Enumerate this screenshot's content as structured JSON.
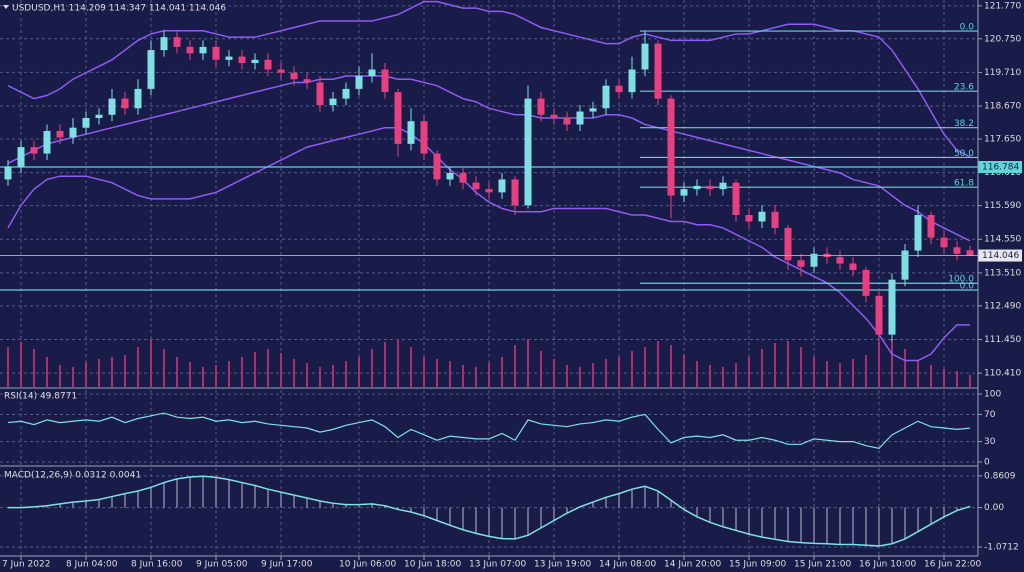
{
  "chart_data": [
    {
      "type": "candlestick",
      "title": "USDUSD,H1 114.209 114.347 114.041 114.046",
      "categories": [
        null,
        "7 Jun 2022",
        null,
        null,
        null,
        null,
        "8 Jun 04:00",
        null,
        null,
        null,
        null,
        "8 Jun 16:00",
        null,
        null,
        null,
        null,
        "9 Jun 05:00",
        null,
        null,
        null,
        null,
        "9 Jun 17:00",
        null,
        null,
        null,
        null,
        null,
        "10 Jun 06:00",
        null,
        null,
        null,
        null,
        "10 Jun 18:00",
        null,
        null,
        null,
        null,
        "13 Jun 07:00",
        null,
        null,
        null,
        null,
        "13 Jun 19:00",
        null,
        null,
        null,
        null,
        "14 Jun 08:00",
        null,
        null,
        null,
        null,
        "14 Jun 20:00",
        null,
        null,
        null,
        null,
        "15 Jun 09:00",
        null,
        null,
        null,
        null,
        "15 Jun 21:00",
        null,
        null,
        null,
        null,
        "16 Jun 10:00",
        null,
        null,
        null,
        null,
        "16 Jun 22:00",
        null,
        null
      ],
      "open": [
        116.4,
        116.8,
        117.4,
        117.2,
        117.9,
        117.7,
        118.0,
        118.3,
        118.4,
        118.9,
        118.6,
        119.2,
        120.4,
        120.8,
        120.5,
        120.3,
        120.5,
        120.1,
        120.2,
        120.0,
        120.1,
        119.8,
        119.7,
        119.5,
        119.4,
        118.7,
        118.9,
        119.2,
        119.6,
        119.8,
        119.1,
        117.5,
        118.2,
        117.2,
        116.4,
        116.6,
        116.3,
        116.1,
        116.0,
        116.4,
        115.6,
        118.9,
        118.4,
        118.3,
        118.1,
        118.5,
        118.6,
        119.3,
        119.1,
        119.8,
        120.6,
        118.9,
        115.9,
        116.1,
        116.2,
        116.1,
        116.3,
        115.3,
        115.1,
        115.4,
        114.9,
        113.9,
        113.7,
        114.1,
        114.0,
        113.8,
        113.6,
        112.8,
        111.6,
        113.3,
        114.2,
        115.3,
        114.6,
        114.3,
        114.209
      ],
      "high": [
        117.0,
        117.6,
        117.6,
        118.1,
        118.1,
        118.3,
        118.5,
        118.6,
        119.2,
        119.1,
        119.5,
        120.7,
        121.0,
        121.0,
        120.7,
        120.7,
        120.7,
        120.4,
        120.4,
        120.3,
        120.3,
        120.0,
        119.9,
        119.7,
        119.6,
        119.1,
        119.4,
        119.9,
        120.3,
        120.0,
        119.2,
        118.6,
        118.4,
        117.3,
        116.8,
        116.8,
        116.5,
        116.3,
        116.6,
        116.5,
        119.3,
        119.1,
        118.6,
        118.5,
        118.7,
        118.8,
        119.5,
        119.5,
        120.2,
        121.0,
        120.7,
        119.0,
        116.3,
        116.4,
        116.4,
        116.5,
        116.4,
        115.5,
        115.6,
        115.6,
        115.0,
        114.1,
        114.3,
        114.3,
        114.2,
        114.0,
        113.7,
        113.0,
        113.5,
        114.4,
        115.6,
        115.4,
        114.8,
        114.5,
        114.347
      ],
      "low": [
        116.2,
        116.6,
        117.0,
        117.0,
        117.5,
        117.5,
        117.8,
        118.1,
        118.2,
        118.4,
        118.4,
        119.0,
        120.2,
        120.3,
        120.1,
        120.1,
        119.9,
        119.9,
        119.8,
        119.8,
        119.6,
        119.5,
        119.3,
        119.2,
        118.5,
        118.5,
        118.7,
        119.0,
        119.4,
        118.9,
        117.1,
        117.3,
        117.0,
        116.2,
        116.2,
        116.1,
        115.9,
        115.8,
        115.8,
        115.3,
        115.5,
        118.2,
        118.1,
        117.9,
        117.9,
        118.3,
        118.4,
        118.9,
        118.9,
        119.6,
        118.7,
        115.2,
        115.7,
        115.9,
        115.9,
        115.9,
        115.1,
        114.9,
        114.9,
        114.7,
        113.6,
        113.4,
        113.5,
        113.8,
        113.6,
        113.4,
        112.6,
        111.3,
        111.4,
        113.1,
        114.0,
        114.4,
        114.1,
        113.9,
        114.041
      ],
      "close": [
        116.8,
        117.4,
        117.2,
        117.9,
        117.7,
        118.0,
        118.3,
        118.4,
        118.9,
        118.6,
        119.2,
        120.4,
        120.8,
        120.5,
        120.3,
        120.5,
        120.1,
        120.2,
        120.0,
        120.1,
        119.8,
        119.7,
        119.5,
        119.4,
        118.7,
        118.9,
        119.2,
        119.6,
        119.8,
        119.1,
        117.5,
        118.2,
        117.2,
        116.4,
        116.6,
        116.3,
        116.1,
        116.0,
        116.4,
        115.6,
        118.9,
        118.4,
        118.3,
        118.1,
        118.5,
        118.6,
        119.3,
        119.1,
        119.8,
        120.6,
        118.9,
        115.9,
        116.1,
        116.2,
        116.1,
        116.3,
        115.3,
        115.1,
        115.4,
        114.9,
        113.9,
        113.7,
        114.1,
        114.0,
        113.8,
        113.6,
        112.8,
        111.6,
        113.3,
        114.2,
        115.3,
        114.6,
        114.3,
        114.1,
        114.046
      ],
      "bb_upper": [
        119.3,
        119.1,
        118.9,
        119.0,
        119.2,
        119.5,
        119.7,
        119.9,
        120.1,
        120.4,
        120.7,
        120.9,
        121.0,
        121.0,
        121.0,
        121.0,
        120.9,
        120.8,
        120.8,
        120.8,
        120.9,
        121.0,
        121.1,
        121.2,
        121.3,
        121.3,
        121.3,
        121.3,
        121.3,
        121.4,
        121.5,
        121.7,
        121.9,
        121.9,
        121.8,
        121.7,
        121.7,
        121.6,
        121.6,
        121.5,
        121.3,
        121.1,
        121.0,
        120.9,
        120.8,
        120.7,
        120.6,
        120.6,
        120.8,
        120.9,
        120.8,
        120.7,
        120.7,
        120.7,
        120.7,
        120.8,
        120.9,
        120.9,
        121.0,
        121.1,
        121.2,
        121.2,
        121.2,
        121.1,
        121.0,
        121.0,
        120.9,
        120.8,
        120.4,
        119.8,
        119.2,
        118.5,
        117.8,
        117.3,
        117.1
      ],
      "bb_middle": [
        116.9,
        117.1,
        117.3,
        117.5,
        117.6,
        117.7,
        117.8,
        117.9,
        118.0,
        118.1,
        118.2,
        118.3,
        118.4,
        118.5,
        118.6,
        118.7,
        118.8,
        118.9,
        119.0,
        119.1,
        119.2,
        119.3,
        119.4,
        119.4,
        119.5,
        119.5,
        119.6,
        119.6,
        119.6,
        119.6,
        119.5,
        119.5,
        119.4,
        119.3,
        119.1,
        118.9,
        118.8,
        118.6,
        118.5,
        118.4,
        118.4,
        118.3,
        118.3,
        118.3,
        118.3,
        118.3,
        118.4,
        118.4,
        118.3,
        118.1,
        118.0,
        117.9,
        117.8,
        117.7,
        117.6,
        117.5,
        117.4,
        117.3,
        117.2,
        117.1,
        117.0,
        116.9,
        116.8,
        116.7,
        116.6,
        116.4,
        116.3,
        116.2,
        115.9,
        115.6,
        115.4,
        115.1,
        114.9,
        114.7,
        114.5
      ],
      "bb_lower": [
        114.9,
        115.6,
        116.1,
        116.4,
        116.5,
        116.5,
        116.5,
        116.4,
        116.3,
        116.1,
        115.9,
        115.8,
        115.8,
        115.8,
        115.8,
        115.9,
        116.0,
        116.2,
        116.4,
        116.6,
        116.8,
        117.0,
        117.2,
        117.4,
        117.5,
        117.6,
        117.7,
        117.8,
        117.9,
        118.0,
        118.0,
        117.8,
        117.5,
        117.1,
        116.7,
        116.4,
        116.0,
        115.7,
        115.5,
        115.4,
        115.4,
        115.4,
        115.5,
        115.5,
        115.5,
        115.5,
        115.5,
        115.4,
        115.3,
        115.3,
        115.2,
        115.1,
        115.1,
        115.0,
        115.0,
        114.9,
        114.7,
        114.5,
        114.3,
        114.0,
        113.8,
        113.6,
        113.4,
        113.2,
        112.9,
        112.5,
        112.1,
        111.6,
        111.0,
        110.8,
        110.8,
        111.0,
        111.5,
        111.9,
        111.9
      ],
      "volume": [
        40,
        45,
        38,
        30,
        22,
        20,
        25,
        28,
        30,
        32,
        40,
        48,
        38,
        30,
        25,
        20,
        22,
        26,
        30,
        35,
        38,
        34,
        28,
        24,
        20,
        22,
        26,
        30,
        38,
        45,
        48,
        40,
        30,
        28,
        26,
        22,
        20,
        24,
        30,
        42,
        48,
        36,
        28,
        22,
        20,
        24,
        28,
        30,
        36,
        40,
        46,
        42,
        32,
        26,
        22,
        20,
        24,
        30,
        38,
        44,
        46,
        40,
        30,
        26,
        24,
        28,
        32,
        44,
        48,
        38,
        26,
        22,
        18,
        16,
        12
      ],
      "ylim": [
        109.98,
        121.95
      ],
      "yticks": [
        {
          "value": 121.77,
          "label": "121.770"
        },
        {
          "value": 120.75,
          "label": "120.750"
        },
        {
          "value": 119.71,
          "label": "119.710"
        },
        {
          "value": 118.67,
          "label": "118.670"
        },
        {
          "value": 117.65,
          "label": "117.650"
        },
        {
          "value": 116.61,
          "label": "116.610"
        },
        {
          "value": 115.59,
          "label": "115.590"
        },
        {
          "value": 114.55,
          "label": "114.550"
        },
        {
          "value": 113.51,
          "label": "113.510"
        },
        {
          "value": 112.49,
          "label": "112.490"
        },
        {
          "value": 111.45,
          "label": "111.450"
        },
        {
          "value": 110.41,
          "label": "110.410"
        }
      ],
      "fib": [
        {
          "label": "0.0",
          "price": 120.99
        },
        {
          "label": "23.6",
          "price": 119.13
        },
        {
          "label": "38.2",
          "price": 118.0
        },
        {
          "label": "50.0",
          "price": 117.08
        },
        {
          "label": "61.8",
          "price": 116.16
        },
        {
          "label": "100.0",
          "price": 113.19
        }
      ],
      "hlines": [
        {
          "price": 116.784,
          "tagged": true
        },
        {
          "price": 112.98,
          "label": "0.0"
        }
      ],
      "grid": true,
      "up_color": "#7fe0e4",
      "down_color": "#e8407e",
      "band_color": "#8e5cf2",
      "level_color": "#5fd6d8",
      "volume_color": "#a8306e"
    },
    {
      "type": "line",
      "title": "RSI(14) 49.8771",
      "values": [
        58,
        60,
        55,
        62,
        58,
        60,
        62,
        60,
        66,
        58,
        64,
        68,
        72,
        66,
        64,
        66,
        60,
        62,
        58,
        60,
        56,
        54,
        52,
        50,
        44,
        48,
        54,
        58,
        62,
        52,
        36,
        48,
        40,
        32,
        38,
        36,
        34,
        34,
        42,
        32,
        62,
        56,
        54,
        52,
        56,
        58,
        62,
        60,
        66,
        70,
        48,
        28,
        36,
        38,
        36,
        40,
        32,
        32,
        36,
        32,
        26,
        26,
        34,
        32,
        30,
        30,
        24,
        20,
        40,
        50,
        60,
        52,
        50,
        48,
        49.8771
      ],
      "ylim": [
        -4.5,
        107.5
      ],
      "yticks": [
        100,
        70,
        30,
        0
      ],
      "color": "#7fe0e4"
    },
    {
      "type": "macd",
      "title": "MACD(12,26,9) 0.0312 0.0041",
      "values": [
        0.0,
        0.0,
        0.02,
        0.05,
        0.1,
        0.15,
        0.18,
        0.22,
        0.3,
        0.38,
        0.45,
        0.55,
        0.68,
        0.78,
        0.83,
        0.85,
        0.82,
        0.76,
        0.68,
        0.6,
        0.5,
        0.42,
        0.34,
        0.26,
        0.18,
        0.12,
        0.08,
        0.08,
        0.1,
        0.05,
        -0.05,
        -0.12,
        -0.22,
        -0.35,
        -0.48,
        -0.6,
        -0.7,
        -0.78,
        -0.84,
        -0.85,
        -0.75,
        -0.55,
        -0.35,
        -0.15,
        0.02,
        0.15,
        0.28,
        0.38,
        0.5,
        0.58,
        0.45,
        0.2,
        -0.05,
        -0.25,
        -0.4,
        -0.52,
        -0.62,
        -0.72,
        -0.8,
        -0.86,
        -0.92,
        -0.95,
        -0.97,
        -0.98,
        -1.0,
        -1.0,
        -1.02,
        -1.04,
        -0.98,
        -0.85,
        -0.65,
        -0.45,
        -0.25,
        -0.08,
        0.0312
      ],
      "ylim": [
        -1.286,
        1.075
      ],
      "yticks": [
        0.8609,
        {
          "value": 0,
          "label": "0.00"
        },
        -1.0712
      ],
      "color": "#7fe0e4",
      "bar_color": "#b8bccc"
    }
  ]
}
